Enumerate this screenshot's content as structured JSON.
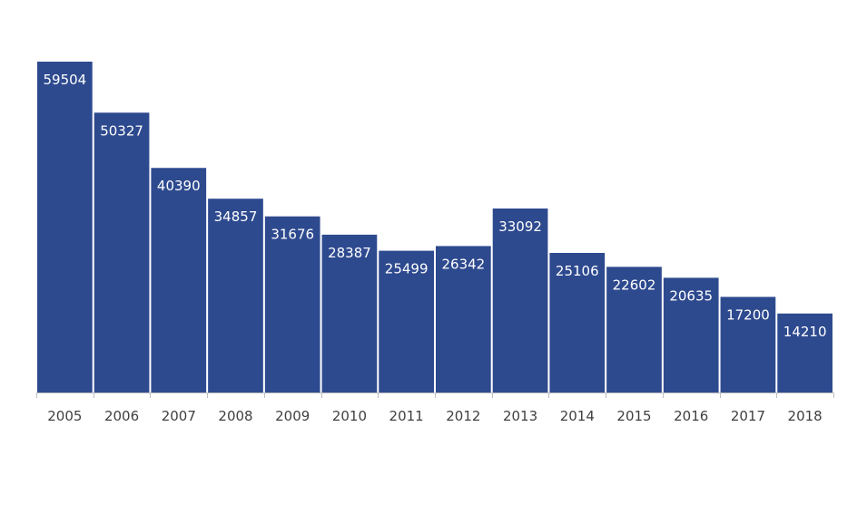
{
  "chart_data": {
    "type": "bar",
    "title": "",
    "xlabel": "",
    "ylabel": "",
    "categories": [
      "2005",
      "2006",
      "2007",
      "2008",
      "2009",
      "2010",
      "2011",
      "2012",
      "2013",
      "2014",
      "2015",
      "2016",
      "2017",
      "2018"
    ],
    "values": [
      59504,
      50327,
      40390,
      34857,
      31676,
      28387,
      25499,
      26342,
      33092,
      25106,
      22602,
      20635,
      17200,
      14210
    ],
    "ylim": [
      0,
      59504
    ],
    "grid": false,
    "legend": "none",
    "bar_color": "#2E4A8F",
    "data_label_color": "#FFFFFF",
    "data_label_position": "inside-top"
  }
}
